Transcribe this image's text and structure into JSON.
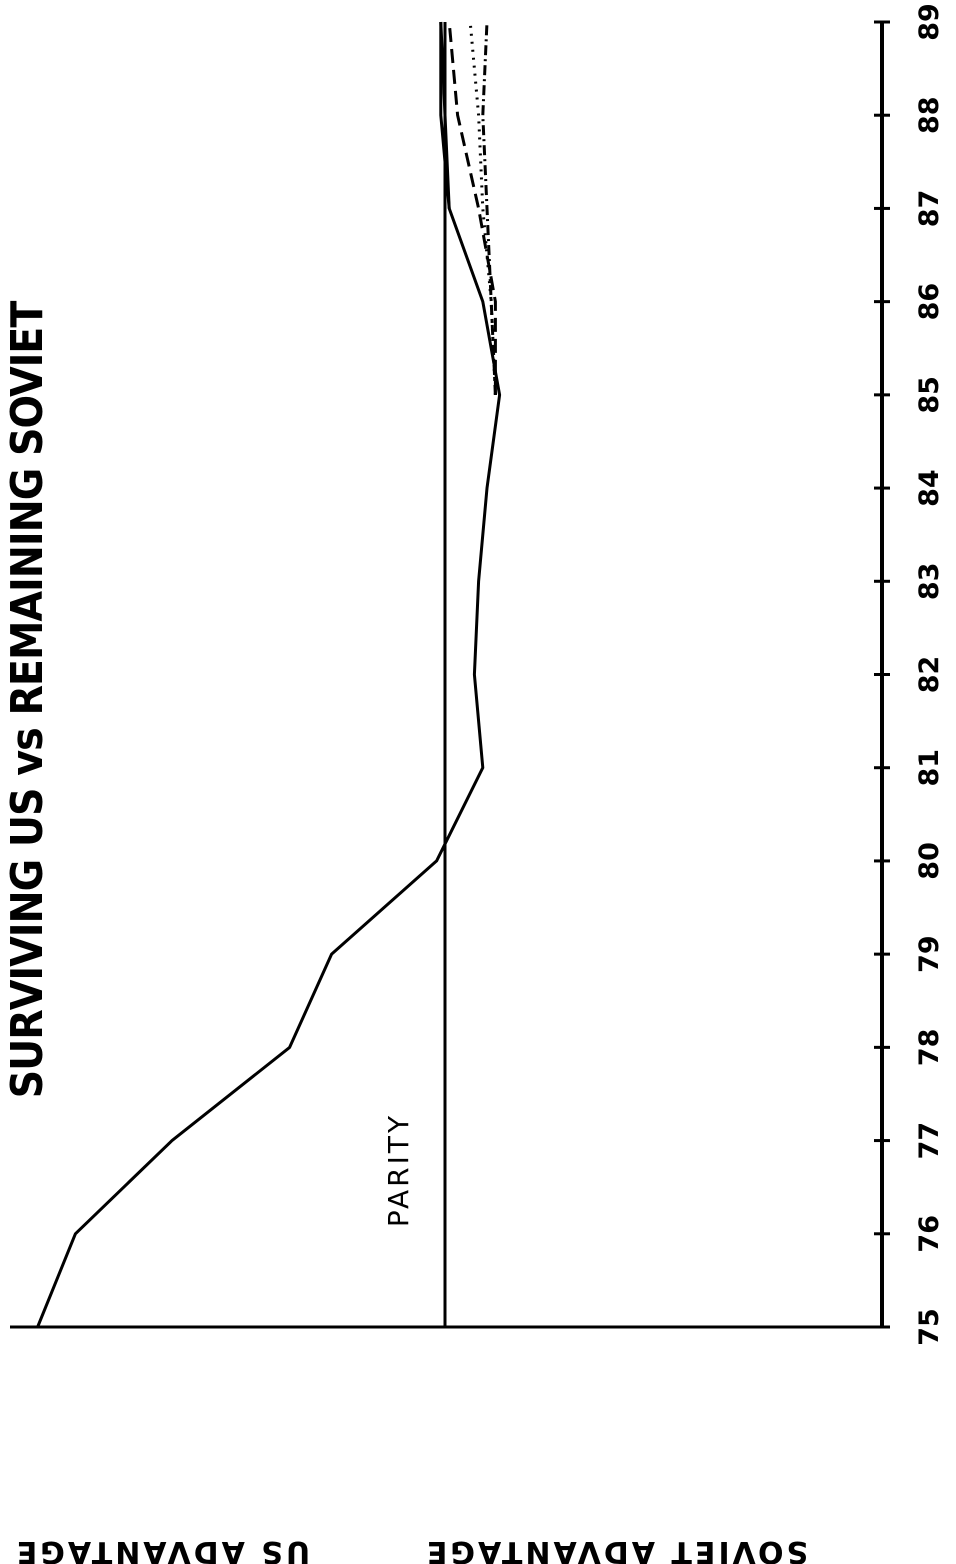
{
  "chart_data": {
    "type": "line",
    "title": "SURVIVING US vs REMAINING SOVIET",
    "x": [
      75,
      76,
      77,
      78,
      79,
      80,
      81,
      82,
      83,
      84,
      85,
      86,
      87,
      88,
      89
    ],
    "x_tick_labels": [
      "75",
      "76",
      "77",
      "78",
      "79",
      "80",
      "81",
      "82",
      "83",
      "84",
      "85",
      "86",
      "87",
      "88",
      "89"
    ],
    "y_top_label": "US ADVANTAGE",
    "y_bottom_label": "SOVIET ADVANTAGE",
    "parity_label": "PARITY",
    "parity_value": 0,
    "ylim": [
      -1,
      1
    ],
    "series": [
      {
        "x": [
          75,
          76,
          77,
          78,
          79,
          80,
          81,
          82,
          83,
          84,
          85,
          86,
          87,
          88,
          89
        ],
        "values": [
          0.97,
          0.88,
          0.65,
          0.37,
          0.27,
          0.02,
          -0.09,
          -0.07,
          -0.08,
          -0.1,
          -0.13,
          -0.09,
          -0.01,
          0.01,
          0.01
        ],
        "style": "solid"
      },
      {
        "x": [
          87,
          88,
          89
        ],
        "values": [
          -0.01,
          0.0,
          0.01
        ],
        "style": "solid"
      },
      {
        "x": [
          85,
          86,
          87,
          88,
          89
        ],
        "values": [
          -0.12,
          -0.12,
          -0.08,
          -0.03,
          -0.01
        ],
        "style": "dashed"
      },
      {
        "x": [
          85,
          86,
          87,
          88,
          89
        ],
        "values": [
          -0.12,
          -0.11,
          -0.09,
          -0.08,
          -0.06
        ],
        "style": "dotted"
      },
      {
        "x": [
          85,
          86,
          87,
          88,
          89
        ],
        "values": [
          -0.12,
          -0.11,
          -0.1,
          -0.09,
          -0.1
        ],
        "style": "dash-dot"
      }
    ]
  }
}
